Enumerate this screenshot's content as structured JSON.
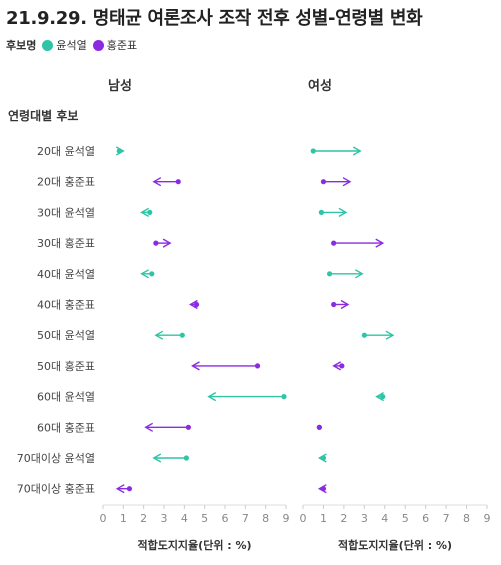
{
  "title": "21.9.29. 명태균 여론조사 조작 전후 성별-연령별 변화",
  "legend": {
    "title": "후보명",
    "items": [
      {
        "label": "윤석열",
        "color": "#2ec4a6"
      },
      {
        "label": "홍준표",
        "color": "#8a2be2"
      }
    ]
  },
  "row_header": "연령대별 후보",
  "chart_data": {
    "type": "dumbbell-arrow",
    "panels": [
      "남성",
      "여성"
    ],
    "xlabel": "적합도지지율(단위 : %)",
    "xlim": [
      0,
      9
    ],
    "xticks": [
      "0",
      "1",
      "2",
      "3",
      "4",
      "5",
      "6",
      "7",
      "8",
      "9"
    ],
    "rows": [
      {
        "label": "20대 윤석열",
        "candidate": "윤석열",
        "male": [
          0.8,
          1.0
        ],
        "female": [
          0.5,
          2.8
        ]
      },
      {
        "label": "20대 홍준표",
        "candidate": "홍준표",
        "male": [
          3.7,
          2.5
        ],
        "female": [
          1.0,
          2.3
        ]
      },
      {
        "label": "30대 윤석열",
        "candidate": "윤석열",
        "male": [
          2.3,
          1.9
        ],
        "female": [
          0.9,
          2.1
        ]
      },
      {
        "label": "30대 홍준표",
        "candidate": "홍준표",
        "male": [
          2.6,
          3.3
        ],
        "female": [
          1.5,
          3.9
        ]
      },
      {
        "label": "40대 윤석열",
        "candidate": "윤석열",
        "male": [
          2.4,
          1.9
        ],
        "female": [
          1.3,
          2.9
        ]
      },
      {
        "label": "40대 홍준표",
        "candidate": "홍준표",
        "male": [
          4.6,
          4.3
        ],
        "female": [
          1.5,
          2.2
        ]
      },
      {
        "label": "50대 윤석열",
        "candidate": "윤석열",
        "male": [
          3.9,
          2.6
        ],
        "female": [
          3.0,
          4.4
        ]
      },
      {
        "label": "50대 홍준표",
        "candidate": "홍준표",
        "male": [
          7.6,
          4.4
        ],
        "female": [
          1.9,
          1.5
        ]
      },
      {
        "label": "60대 윤석열",
        "candidate": "윤석열",
        "male": [
          8.9,
          5.2
        ],
        "female": [
          3.9,
          3.6
        ]
      },
      {
        "label": "60대 홍준표",
        "candidate": "홍준표",
        "male": [
          4.2,
          2.1
        ],
        "female": [
          0.8,
          0.8
        ]
      },
      {
        "label": "70대이상 윤석열",
        "candidate": "윤석열",
        "male": [
          4.1,
          2.5
        ],
        "female": [
          1.0,
          0.8
        ]
      },
      {
        "label": "70대이상 홍준표",
        "candidate": "홍준표",
        "male": [
          1.3,
          0.7
        ],
        "female": [
          1.0,
          0.8
        ]
      }
    ]
  }
}
